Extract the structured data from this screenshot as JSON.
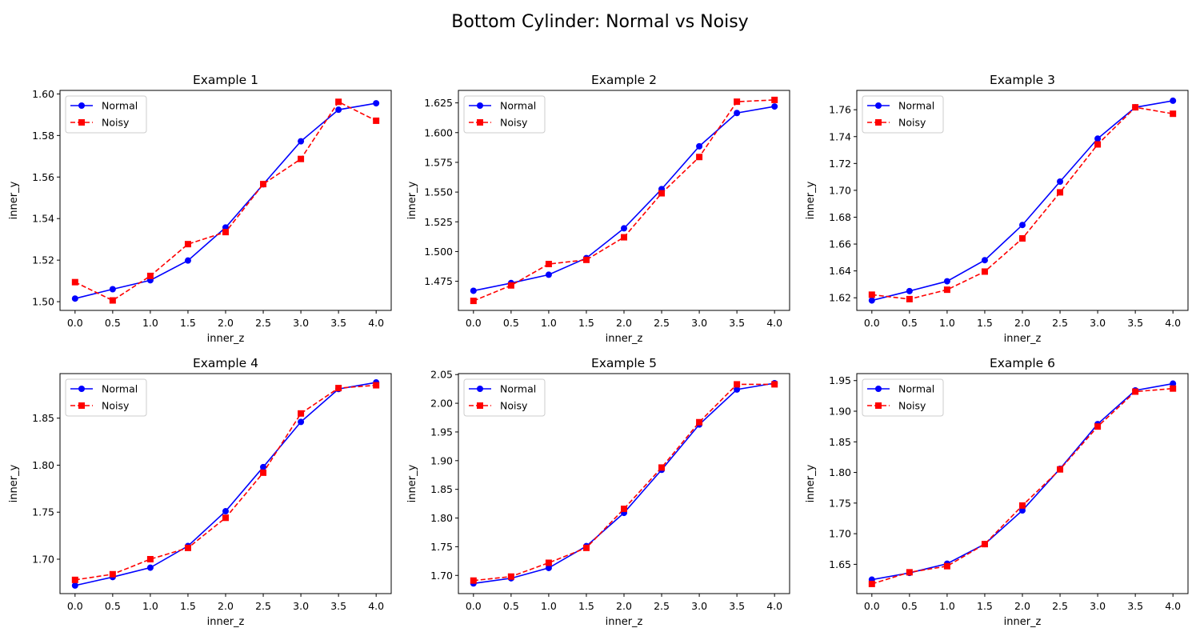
{
  "figure": {
    "title": "Bottom Cylinder: Normal vs Noisy"
  },
  "colors": {
    "normal": "#0000ff",
    "noisy": "#ff0000"
  },
  "chart_data": [
    {
      "type": "line",
      "title": "Example 1",
      "xlabel": "inner_z",
      "ylabel": "inner_y",
      "x": [
        0.0,
        0.5,
        1.0,
        1.5,
        2.0,
        2.5,
        3.0,
        3.5,
        4.0
      ],
      "xticks": [
        "0.0",
        "0.5",
        "1.0",
        "1.5",
        "2.0",
        "2.5",
        "3.0",
        "3.5",
        "4.0"
      ],
      "xlim": [
        -0.2,
        4.2
      ],
      "ylim": [
        1.4958,
        1.6017
      ],
      "yticks": [
        "1.50",
        "1.52",
        "1.54",
        "1.56",
        "1.58",
        "1.60"
      ],
      "legend": "top-left",
      "series": [
        {
          "name": "Normal",
          "style": "solid",
          "marker": "circle",
          "values": [
            1.5015,
            1.506,
            1.5103,
            1.5198,
            1.5357,
            1.5565,
            1.5772,
            1.5924,
            1.5955
          ]
        },
        {
          "name": "Noisy",
          "style": "dashed",
          "marker": "square",
          "values": [
            1.5094,
            1.5006,
            1.5124,
            1.5277,
            1.5335,
            1.5566,
            1.5687,
            1.5962,
            1.5871
          ]
        }
      ]
    },
    {
      "type": "line",
      "title": "Example 2",
      "xlabel": "inner_z",
      "ylabel": "inner_y",
      "x": [
        0.0,
        0.5,
        1.0,
        1.5,
        2.0,
        2.5,
        3.0,
        3.5,
        4.0
      ],
      "xticks": [
        "0.0",
        "0.5",
        "1.0",
        "1.5",
        "2.0",
        "2.5",
        "3.0",
        "3.5",
        "4.0"
      ],
      "xlim": [
        -0.2,
        4.2
      ],
      "ylim": [
        1.4505,
        1.6355
      ],
      "yticks": [
        "1.475",
        "1.500",
        "1.525",
        "1.550",
        "1.575",
        "1.600",
        "1.625"
      ],
      "legend": "top-left",
      "series": [
        {
          "name": "Normal",
          "style": "solid",
          "marker": "circle",
          "values": [
            1.467,
            1.4735,
            1.4805,
            1.4945,
            1.5195,
            1.5525,
            1.5885,
            1.6165,
            1.622
          ]
        },
        {
          "name": "Noisy",
          "style": "dashed",
          "marker": "square",
          "values": [
            1.4585,
            1.4715,
            1.4895,
            1.493,
            1.512,
            1.549,
            1.5795,
            1.626,
            1.6275
          ]
        }
      ]
    },
    {
      "type": "line",
      "title": "Example 3",
      "xlabel": "inner_z",
      "ylabel": "inner_y",
      "x": [
        0.0,
        0.5,
        1.0,
        1.5,
        2.0,
        2.5,
        3.0,
        3.5,
        4.0
      ],
      "xticks": [
        "0.0",
        "0.5",
        "1.0",
        "1.5",
        "2.0",
        "2.5",
        "3.0",
        "3.5",
        "4.0"
      ],
      "xlim": [
        -0.2,
        4.2
      ],
      "ylim": [
        1.6106,
        1.7744
      ],
      "yticks": [
        "1.62",
        "1.64",
        "1.66",
        "1.68",
        "1.70",
        "1.72",
        "1.74",
        "1.76"
      ],
      "legend": "top-left",
      "series": [
        {
          "name": "Normal",
          "style": "solid",
          "marker": "circle",
          "values": [
            1.618,
            1.625,
            1.6323,
            1.648,
            1.6742,
            1.7065,
            1.7385,
            1.7618,
            1.7667
          ]
        },
        {
          "name": "Noisy",
          "style": "dashed",
          "marker": "square",
          "values": [
            1.6223,
            1.619,
            1.626,
            1.6395,
            1.6642,
            1.6985,
            1.7342,
            1.7618,
            1.757
          ]
        }
      ]
    },
    {
      "type": "line",
      "title": "Example 4",
      "xlabel": "inner_z",
      "ylabel": "inner_y",
      "x": [
        0.0,
        0.5,
        1.0,
        1.5,
        2.0,
        2.5,
        3.0,
        3.5,
        4.0
      ],
      "xticks": [
        "0.0",
        "0.5",
        "1.0",
        "1.5",
        "2.0",
        "2.5",
        "3.0",
        "3.5",
        "4.0"
      ],
      "xlim": [
        -0.2,
        4.2
      ],
      "ylim": [
        1.6634,
        1.8974
      ],
      "yticks": [
        "1.70",
        "1.75",
        "1.80",
        "1.85"
      ],
      "legend": "top-left",
      "series": [
        {
          "name": "Normal",
          "style": "solid",
          "marker": "circle",
          "values": [
            1.672,
            1.681,
            1.691,
            1.714,
            1.751,
            1.798,
            1.846,
            1.881,
            1.888
          ]
        },
        {
          "name": "Noisy",
          "style": "dashed",
          "marker": "square",
          "values": [
            1.678,
            1.684,
            1.7,
            1.712,
            1.744,
            1.792,
            1.855,
            1.882,
            1.885
          ]
        }
      ]
    },
    {
      "type": "line",
      "title": "Example 5",
      "xlabel": "inner_z",
      "ylabel": "inner_y",
      "x": [
        0.0,
        0.5,
        1.0,
        1.5,
        2.0,
        2.5,
        3.0,
        3.5,
        4.0
      ],
      "xticks": [
        "0.0",
        "0.5",
        "1.0",
        "1.5",
        "2.0",
        "2.5",
        "3.0",
        "3.5",
        "4.0"
      ],
      "xlim": [
        -0.2,
        4.2
      ],
      "ylim": [
        1.6683,
        2.0517
      ],
      "yticks": [
        "1.70",
        "1.75",
        "1.80",
        "1.85",
        "1.90",
        "1.95",
        "2.00",
        "2.05"
      ],
      "legend": "top-left",
      "series": [
        {
          "name": "Normal",
          "style": "solid",
          "marker": "circle",
          "values": [
            1.686,
            1.695,
            1.713,
            1.751,
            1.809,
            1.884,
            1.963,
            2.024,
            2.035
          ]
        },
        {
          "name": "Noisy",
          "style": "dashed",
          "marker": "square",
          "values": [
            1.691,
            1.698,
            1.722,
            1.748,
            1.816,
            1.888,
            1.967,
            2.033,
            2.033
          ]
        }
      ]
    },
    {
      "type": "line",
      "title": "Example 6",
      "xlabel": "inner_z",
      "ylabel": "inner_y",
      "x": [
        0.0,
        0.5,
        1.0,
        1.5,
        2.0,
        2.5,
        3.0,
        3.5,
        4.0
      ],
      "xticks": [
        "0.0",
        "0.5",
        "1.0",
        "1.5",
        "2.0",
        "2.5",
        "3.0",
        "3.5",
        "4.0"
      ],
      "xlim": [
        -0.2,
        4.2
      ],
      "ylim": [
        1.6022,
        1.9614
      ],
      "yticks": [
        "1.65",
        "1.70",
        "1.75",
        "1.80",
        "1.85",
        "1.90",
        "1.95"
      ],
      "legend": "top-left",
      "series": [
        {
          "name": "Normal",
          "style": "solid",
          "marker": "circle",
          "values": [
            1.625,
            1.636,
            1.651,
            1.683,
            1.738,
            1.806,
            1.879,
            1.934,
            1.945
          ]
        },
        {
          "name": "Noisy",
          "style": "dashed",
          "marker": "square",
          "values": [
            1.618,
            1.637,
            1.647,
            1.683,
            1.746,
            1.805,
            1.875,
            1.932,
            1.937
          ]
        }
      ]
    }
  ]
}
